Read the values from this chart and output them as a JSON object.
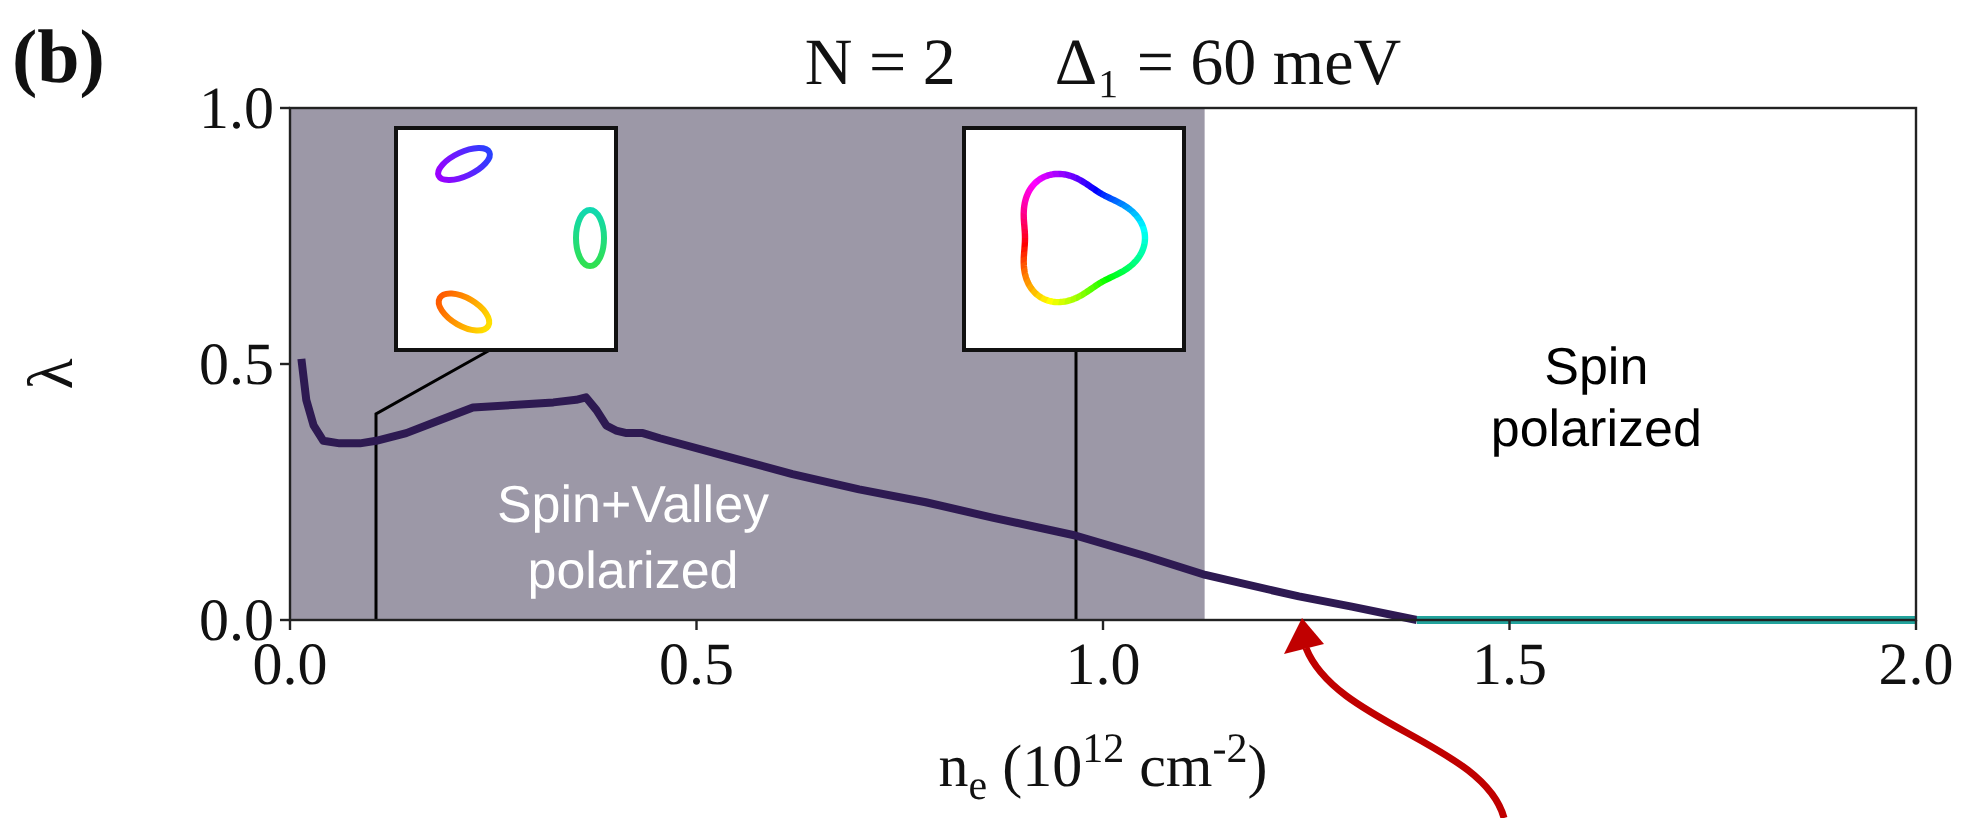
{
  "chart_data": {
    "type": "line",
    "title": "N = 2      Δ₁ = 60 meV",
    "xlabel": "n$_{e}$ (10$^{12}$ cm$^{-2}$)",
    "ylabel": "λ",
    "series": [
      {
        "color": "#2e1a52",
        "x": [
          0.014,
          0.02,
          0.029,
          0.041,
          0.061,
          0.086,
          0.106,
          0.143,
          0.184,
          0.225,
          0.274,
          0.324,
          0.352,
          0.364,
          0.377,
          0.389,
          0.401,
          0.414,
          0.434,
          0.455,
          0.536,
          0.618,
          0.7,
          0.782,
          0.864,
          0.966,
          1.052,
          1.126,
          1.241,
          1.306,
          1.386
        ],
        "values": [
          0.51,
          0.43,
          0.38,
          0.35,
          0.345,
          0.345,
          0.35,
          0.365,
          0.39,
          0.415,
          0.42,
          0.425,
          0.43,
          0.435,
          0.41,
          0.38,
          0.37,
          0.365,
          0.365,
          0.355,
          0.32,
          0.285,
          0.255,
          0.23,
          0.2,
          0.165,
          0.125,
          0.088,
          0.046,
          0.026,
          0
        ]
      },
      {
        "color": "#22a39c",
        "x": [
          1.386,
          2.0
        ],
        "values": [
          0,
          0
        ]
      }
    ],
    "xlim": [
      0,
      2
    ],
    "ylim": [
      0,
      1
    ],
    "xticks": [
      {
        "value": 0,
        "label": "0.0"
      },
      0.5,
      {
        "value": 1,
        "label": "1.0"
      },
      1.5,
      {
        "value": 2,
        "label": "2.0"
      }
    ],
    "yticks": [
      {
        "value": 0,
        "label": "0.0"
      },
      0.5,
      {
        "value": 1,
        "label": "1.0"
      }
    ],
    "bands": [
      {
        "axis": "x",
        "from": 0,
        "to": 1.125,
        "label": "Spin+Valley polarized",
        "color": "#9c98a7"
      }
    ],
    "annotations": [
      "(b)",
      "Spin polarized"
    ]
  }
}
